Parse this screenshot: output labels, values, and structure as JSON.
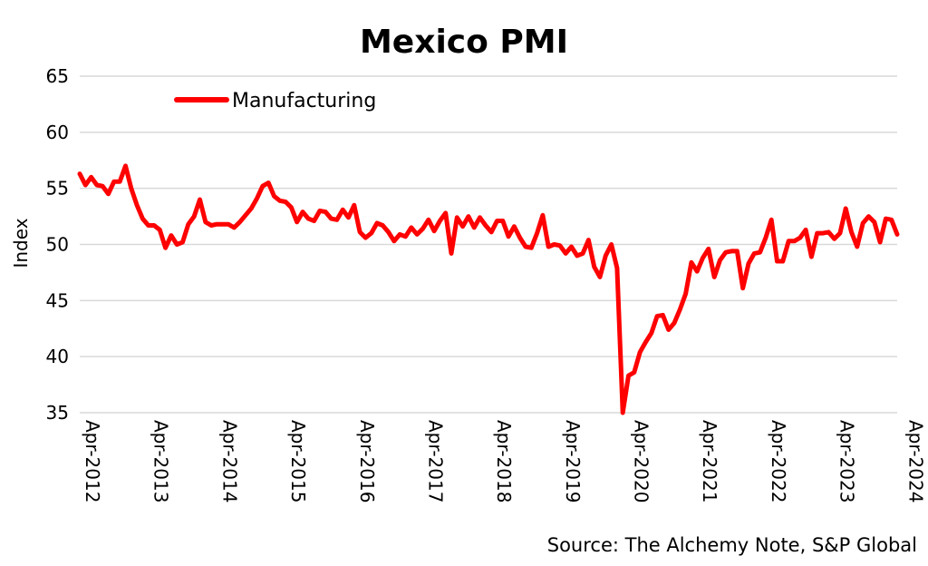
{
  "chart_data": {
    "type": "line",
    "title": "Mexico PMI",
    "ylabel": "Index",
    "xlabel": "",
    "ylim": [
      35,
      65
    ],
    "yticks": [
      35,
      40,
      45,
      50,
      55,
      60,
      65
    ],
    "xticks": [
      "Apr-2012",
      "Apr-2013",
      "Apr-2014",
      "Apr-2015",
      "Apr-2016",
      "Apr-2017",
      "Apr-2018",
      "Apr-2019",
      "Apr-2020",
      "Apr-2021",
      "Apr-2022",
      "Apr-2023",
      "Apr-2024"
    ],
    "grid": "horizontal",
    "legend_position": "top-left",
    "source": "Source: The Alchemy Note, S&P Global",
    "series": [
      {
        "name": "Manufacturing",
        "color": "#ff0000",
        "x_start": "Apr-2012",
        "frequency": "monthly",
        "values": [
          56.3,
          55.3,
          56.0,
          55.3,
          55.2,
          54.5,
          55.6,
          55.6,
          57.0,
          55.0,
          53.5,
          52.3,
          51.7,
          51.7,
          51.3,
          49.7,
          50.8,
          50.0,
          50.2,
          51.8,
          52.5,
          54.0,
          52.0,
          51.7,
          51.8,
          51.8,
          51.8,
          51.5,
          52.0,
          52.6,
          53.2,
          54.1,
          55.2,
          55.5,
          54.3,
          53.9,
          53.8,
          53.3,
          52.0,
          52.9,
          52.3,
          52.1,
          53.0,
          52.9,
          52.3,
          52.2,
          53.1,
          52.4,
          53.5,
          51.1,
          50.6,
          51.0,
          51.9,
          51.7,
          51.1,
          50.3,
          50.9,
          50.7,
          51.5,
          50.9,
          51.4,
          52.2,
          51.2,
          52.1,
          52.8,
          49.2,
          52.4,
          51.6,
          52.5,
          51.5,
          52.4,
          51.7,
          51.1,
          52.1,
          52.1,
          50.7,
          51.6,
          50.6,
          49.8,
          49.7,
          51.0,
          52.6,
          49.8,
          50.0,
          49.9,
          49.2,
          49.8,
          49.0,
          49.2,
          50.4,
          48.0,
          47.1,
          49.0,
          50.0,
          47.9,
          35.0,
          38.3,
          38.6,
          40.4,
          41.3,
          42.1,
          43.6,
          43.7,
          42.4,
          43.0,
          44.2,
          45.6,
          48.4,
          47.6,
          48.8,
          49.6,
          47.1,
          48.6,
          49.3,
          49.4,
          49.4,
          46.1,
          48.3,
          49.2,
          49.3,
          50.6,
          52.2,
          48.5,
          48.5,
          50.3,
          50.3,
          50.6,
          51.3,
          48.9,
          51.0,
          51.0,
          51.1,
          50.5,
          51.0,
          53.2,
          51.1,
          49.8,
          51.9,
          52.5,
          52.0,
          50.2,
          52.3,
          52.2,
          50.9
        ]
      }
    ]
  }
}
